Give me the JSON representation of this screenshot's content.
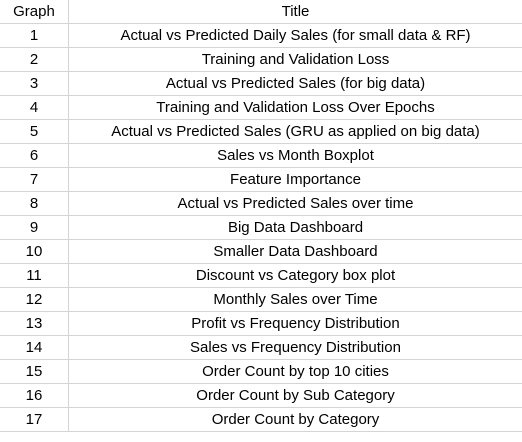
{
  "headers": {
    "graph": "Graph",
    "title": "Title"
  },
  "rows": [
    {
      "graph": "1",
      "title": "Actual vs Predicted Daily Sales (for small data & RF)"
    },
    {
      "graph": "2",
      "title": "Training and Validation Loss"
    },
    {
      "graph": "3",
      "title": "Actual vs Predicted Sales (for big data)"
    },
    {
      "graph": "4",
      "title": "Training and Validation Loss Over Epochs"
    },
    {
      "graph": "5",
      "title": "Actual vs Predicted Sales (GRU as applied on big data)"
    },
    {
      "graph": "6",
      "title": "Sales vs Month Boxplot"
    },
    {
      "graph": "7",
      "title": "Feature Importance"
    },
    {
      "graph": "8",
      "title": "Actual vs Predicted Sales over time"
    },
    {
      "graph": "9",
      "title": "Big Data Dashboard"
    },
    {
      "graph": "10",
      "title": "Smaller Data Dashboard"
    },
    {
      "graph": "11",
      "title": "Discount vs Category box plot"
    },
    {
      "graph": "12",
      "title": "Monthly Sales over Time"
    },
    {
      "graph": "13",
      "title": "Profit vs Frequency Distribution"
    },
    {
      "graph": "14",
      "title": "Sales vs Frequency Distribution"
    },
    {
      "graph": "15",
      "title": "Order Count by top 10 cities"
    },
    {
      "graph": "16",
      "title": "Order Count by Sub Category"
    },
    {
      "graph": "17",
      "title": "Order Count by Category"
    }
  ]
}
